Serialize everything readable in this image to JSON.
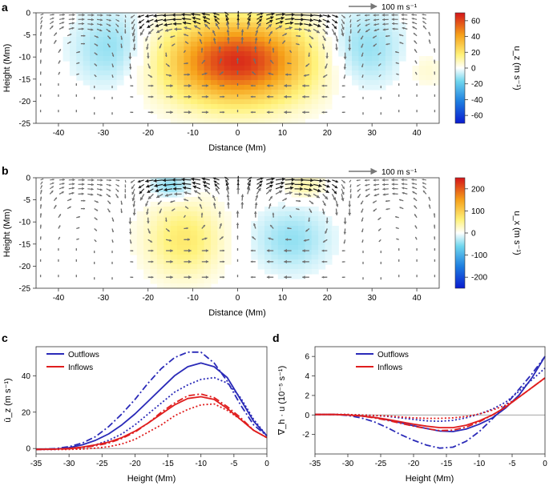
{
  "chart_data": [
    {
      "panel": "a",
      "type": "heatmap",
      "xlabel": "Distance (Mm)",
      "ylabel": "Height (Mm)",
      "xlim": [
        -45,
        45
      ],
      "ylim": [
        -25,
        0
      ],
      "xticks": [
        -40,
        -30,
        -20,
        -10,
        0,
        10,
        20,
        30,
        40
      ],
      "yticks": [
        0,
        -5,
        -10,
        -15,
        -20,
        -25
      ],
      "scale_label": "100 m s⁻¹",
      "colorbar": {
        "label": "u_z (m s⁻¹)",
        "min": -70,
        "max": 70,
        "ticks": [
          60,
          40,
          20,
          0,
          -20,
          -40,
          -60
        ]
      },
      "blobs": [
        {
          "x": 0,
          "y": -11,
          "amp": 65,
          "sx": 11,
          "sy": 6.5
        },
        {
          "x": -28,
          "y": -8,
          "amp": -14,
          "sx": 6,
          "sy": 6
        },
        {
          "x": 28,
          "y": -8,
          "amp": -14,
          "sx": 6,
          "sy": 6
        },
        {
          "x": 42,
          "y": -13,
          "amp": 6,
          "sx": 3,
          "sy": 3
        }
      ],
      "flow": "outflow"
    },
    {
      "panel": "b",
      "type": "heatmap",
      "xlabel": "Distance (Mm)",
      "ylabel": "Height (Mm)",
      "xlim": [
        -45,
        45
      ],
      "ylim": [
        -25,
        0
      ],
      "xticks": [
        -40,
        -30,
        -20,
        -10,
        0,
        10,
        20,
        30,
        40
      ],
      "yticks": [
        0,
        -5,
        -10,
        -15,
        -20,
        -25
      ],
      "scale_label": "100 m s⁻¹",
      "colorbar": {
        "label": "u_x (m s⁻¹)",
        "min": -250,
        "max": 250,
        "ticks": [
          200,
          100,
          0,
          -100,
          -200
        ]
      },
      "blobs": [
        {
          "x": -12,
          "y": -14,
          "amp": 70,
          "sx": 6,
          "sy": 6
        },
        {
          "x": 12,
          "y": -14,
          "amp": -45,
          "sx": 6,
          "sy": 5
        },
        {
          "x": -15,
          "y": -2,
          "amp": -55,
          "sx": 3,
          "sy": 2
        },
        {
          "x": 15,
          "y": -2,
          "amp": 40,
          "sx": 3,
          "sy": 2
        }
      ],
      "flow": "outflow"
    },
    {
      "panel": "c",
      "type": "line",
      "xlabel": "Height (Mm)",
      "ylabel": "ū_z (m s⁻¹)",
      "xlim": [
        -35,
        0
      ],
      "ylim": [
        -3,
        56
      ],
      "xticks": [
        -35,
        -30,
        -25,
        -20,
        -15,
        -10,
        -5,
        0
      ],
      "yticks": [
        0,
        20,
        40
      ],
      "legend": [
        "Outflows",
        "Inflows"
      ],
      "series": [
        {
          "name": "Outflows",
          "style": "solid",
          "color": "#2a2ab8",
          "x": [
            -35,
            -32,
            -30,
            -28,
            -26,
            -24,
            -22,
            -20,
            -18,
            -16,
            -14,
            -12,
            -10,
            -8,
            -6,
            -4,
            -2,
            0
          ],
          "y": [
            -0.5,
            -0.3,
            0.5,
            2,
            4.5,
            8,
            13,
            19,
            26,
            33,
            40,
            45,
            47,
            45,
            39,
            27,
            15,
            7
          ]
        },
        {
          "name": "Outflows",
          "style": "dashdot",
          "color": "#2a2ab8",
          "x": [
            -35,
            -32,
            -30,
            -28,
            -26,
            -24,
            -22,
            -20,
            -18,
            -16,
            -14,
            -12,
            -10,
            -8,
            -6,
            -4,
            -2,
            0
          ],
          "y": [
            -0.5,
            0,
            1,
            3,
            6.5,
            12,
            19,
            27,
            36,
            44,
            50,
            53,
            53,
            47,
            37,
            24,
            13,
            7
          ]
        },
        {
          "name": "Outflows",
          "style": "dotted",
          "color": "#2a2ab8",
          "x": [
            -35,
            -32,
            -30,
            -28,
            -26,
            -24,
            -22,
            -20,
            -18,
            -16,
            -14,
            -12,
            -10,
            -8,
            -6,
            -4,
            -2,
            0
          ],
          "y": [
            -0.5,
            -0.5,
            -0.3,
            0.5,
            2,
            4.5,
            8,
            13,
            19,
            25,
            31,
            35,
            38,
            39,
            36,
            28,
            16,
            7
          ]
        },
        {
          "name": "Inflows",
          "style": "solid",
          "color": "#e01e1e",
          "x": [
            -35,
            -32,
            -30,
            -28,
            -26,
            -24,
            -22,
            -20,
            -18,
            -16,
            -14,
            -12,
            -10,
            -8,
            -6,
            -4,
            -2,
            0
          ],
          "y": [
            -0.5,
            -0.3,
            0,
            0.8,
            2,
            3.5,
            6,
            9.5,
            14,
            19,
            24,
            27.5,
            28.5,
            27,
            22,
            16,
            10,
            6
          ]
        },
        {
          "name": "Inflows",
          "style": "dashdot",
          "color": "#e01e1e",
          "x": [
            -35,
            -32,
            -30,
            -28,
            -26,
            -24,
            -22,
            -20,
            -18,
            -16,
            -14,
            -12,
            -10,
            -8,
            -6,
            -4,
            -2,
            0
          ],
          "y": [
            -0.5,
            -0.4,
            -0.2,
            0.5,
            1.5,
            3,
            5.5,
            9,
            14,
            20,
            25,
            29,
            30,
            28,
            23,
            17,
            10,
            6
          ]
        },
        {
          "name": "Inflows",
          "style": "dotted",
          "color": "#e01e1e",
          "x": [
            -35,
            -32,
            -30,
            -28,
            -26,
            -24,
            -22,
            -20,
            -18,
            -16,
            -14,
            -12,
            -10,
            -8,
            -6,
            -4,
            -2,
            0
          ],
          "y": [
            -0.5,
            -0.5,
            -0.5,
            -0.3,
            0.2,
            1,
            2.5,
            5,
            9,
            13,
            18,
            21.5,
            24,
            24.5,
            21,
            16,
            10,
            6
          ]
        }
      ]
    },
    {
      "panel": "d",
      "type": "line",
      "xlabel": "Height (Mm)",
      "ylabel": "∇_h · u (10⁻⁵ s⁻¹)",
      "xlim": [
        -35,
        0
      ],
      "ylim": [
        -4,
        7
      ],
      "xticks": [
        -35,
        -30,
        -25,
        -20,
        -15,
        -10,
        -5,
        0
      ],
      "yticks": [
        -2,
        0,
        2,
        4,
        6
      ],
      "legend": [
        "Outflows",
        "Inflows"
      ],
      "series": [
        {
          "name": "Outflows",
          "style": "solid",
          "color": "#2a2ab8",
          "x": [
            -35,
            -32,
            -30,
            -28,
            -26,
            -24,
            -22,
            -20,
            -18,
            -16,
            -14,
            -12,
            -10,
            -8,
            -6,
            -4,
            -2,
            0
          ],
          "y": [
            0.05,
            0.05,
            0,
            -0.1,
            -0.25,
            -0.5,
            -0.8,
            -1.1,
            -1.4,
            -1.65,
            -1.7,
            -1.45,
            -0.95,
            -0.3,
            0.7,
            2,
            3.8,
            6
          ]
        },
        {
          "name": "Outflows",
          "style": "dashdot",
          "color": "#2a2ab8",
          "x": [
            -35,
            -32,
            -30,
            -28,
            -26,
            -24,
            -22,
            -20,
            -18,
            -16,
            -14,
            -12,
            -10,
            -8,
            -6,
            -4,
            -2,
            0
          ],
          "y": [
            0.05,
            0.05,
            -0.05,
            -0.3,
            -0.7,
            -1.3,
            -2,
            -2.6,
            -3.1,
            -3.4,
            -3.3,
            -2.7,
            -1.7,
            -0.4,
            1,
            2.6,
            4.2,
            6
          ]
        },
        {
          "name": "Outflows",
          "style": "dotted",
          "color": "#2a2ab8",
          "x": [
            -35,
            -32,
            -30,
            -28,
            -26,
            -24,
            -22,
            -20,
            -18,
            -16,
            -14,
            -12,
            -10,
            -8,
            -6,
            -4,
            -2,
            0
          ],
          "y": [
            0.05,
            0.05,
            0.05,
            0,
            -0.05,
            -0.15,
            -0.3,
            -0.45,
            -0.6,
            -0.65,
            -0.55,
            -0.3,
            0.1,
            0.6,
            1.3,
            2.4,
            3.6,
            4.8
          ]
        },
        {
          "name": "Inflows",
          "style": "solid",
          "color": "#e01e1e",
          "x": [
            -35,
            -32,
            -30,
            -28,
            -26,
            -24,
            -22,
            -20,
            -18,
            -16,
            -14,
            -12,
            -10,
            -8,
            -6,
            -4,
            -2,
            0
          ],
          "y": [
            0.05,
            0.05,
            0,
            -0.1,
            -0.25,
            -0.45,
            -0.7,
            -0.95,
            -1.15,
            -1.3,
            -1.3,
            -1.05,
            -0.6,
            0,
            0.8,
            1.8,
            2.8,
            3.8
          ]
        },
        {
          "name": "Inflows",
          "style": "dashdot",
          "color": "#e01e1e",
          "x": [
            -35,
            -32,
            -30,
            -28,
            -26,
            -24,
            -22,
            -20,
            -18,
            -16,
            -14,
            -12,
            -10,
            -8,
            -6,
            -4,
            -2,
            0
          ],
          "y": [
            0.05,
            0.05,
            0,
            -0.1,
            -0.3,
            -0.55,
            -0.85,
            -1.15,
            -1.4,
            -1.6,
            -1.55,
            -1.25,
            -0.7,
            0,
            0.8,
            1.8,
            2.8,
            3.8
          ]
        },
        {
          "name": "Inflows",
          "style": "dotted",
          "color": "#e01e1e",
          "x": [
            -35,
            -32,
            -30,
            -28,
            -26,
            -24,
            -22,
            -20,
            -18,
            -16,
            -14,
            -12,
            -10,
            -8,
            -6,
            -4,
            -2,
            0
          ],
          "y": [
            0.05,
            0.05,
            0.05,
            0,
            -0.05,
            -0.1,
            -0.2,
            -0.3,
            -0.35,
            -0.35,
            -0.3,
            -0.15,
            0.1,
            0.5,
            1,
            1.8,
            2.8,
            3.8
          ]
        }
      ]
    }
  ]
}
